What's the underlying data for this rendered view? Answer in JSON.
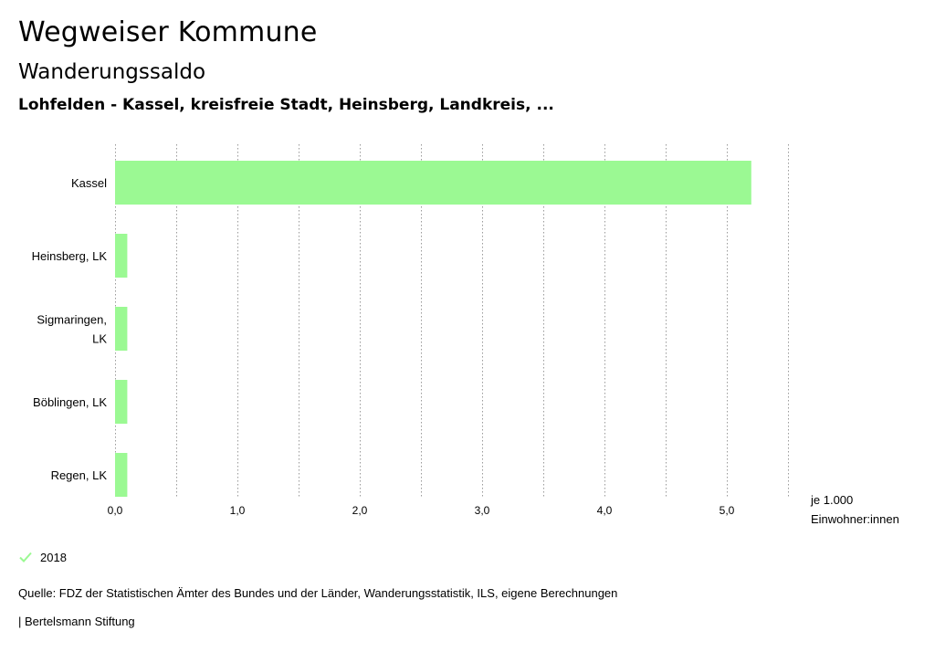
{
  "header": {
    "title": "Wegweiser Kommune",
    "subtitle": "Wanderungssaldo",
    "regions": "Lohfelden - Kassel, kreisfreie Stadt, Heinsberg, Landkreis, ..."
  },
  "chart_data": {
    "type": "bar",
    "orientation": "horizontal",
    "categories": [
      "Kassel",
      "Heinsberg, LK",
      "Sigmaringen, LK",
      "Böblingen, LK",
      "Regen, LK"
    ],
    "series": [
      {
        "name": "2018",
        "values": [
          5.2,
          0.1,
          0.1,
          0.1,
          0.1
        ],
        "color": "#9bf993"
      }
    ],
    "x_ticks": [
      "0,0",
      "1,0",
      "2,0",
      "3,0",
      "4,0",
      "5,0"
    ],
    "x_unit": [
      "je 1.000",
      "Einwohner:innen"
    ],
    "xlim": [
      0,
      5.5
    ],
    "grid": "vertical dotted"
  },
  "legend": {
    "items": [
      {
        "label": "2018",
        "color": "#9bf993",
        "icon": "check-icon"
      }
    ]
  },
  "footer": {
    "source": "Quelle: FDZ der Statistischen Ämter des Bundes und der Länder, Wanderungsstatistik, ILS, eigene Berechnungen",
    "publisher": "| Bertelsmann Stiftung"
  }
}
